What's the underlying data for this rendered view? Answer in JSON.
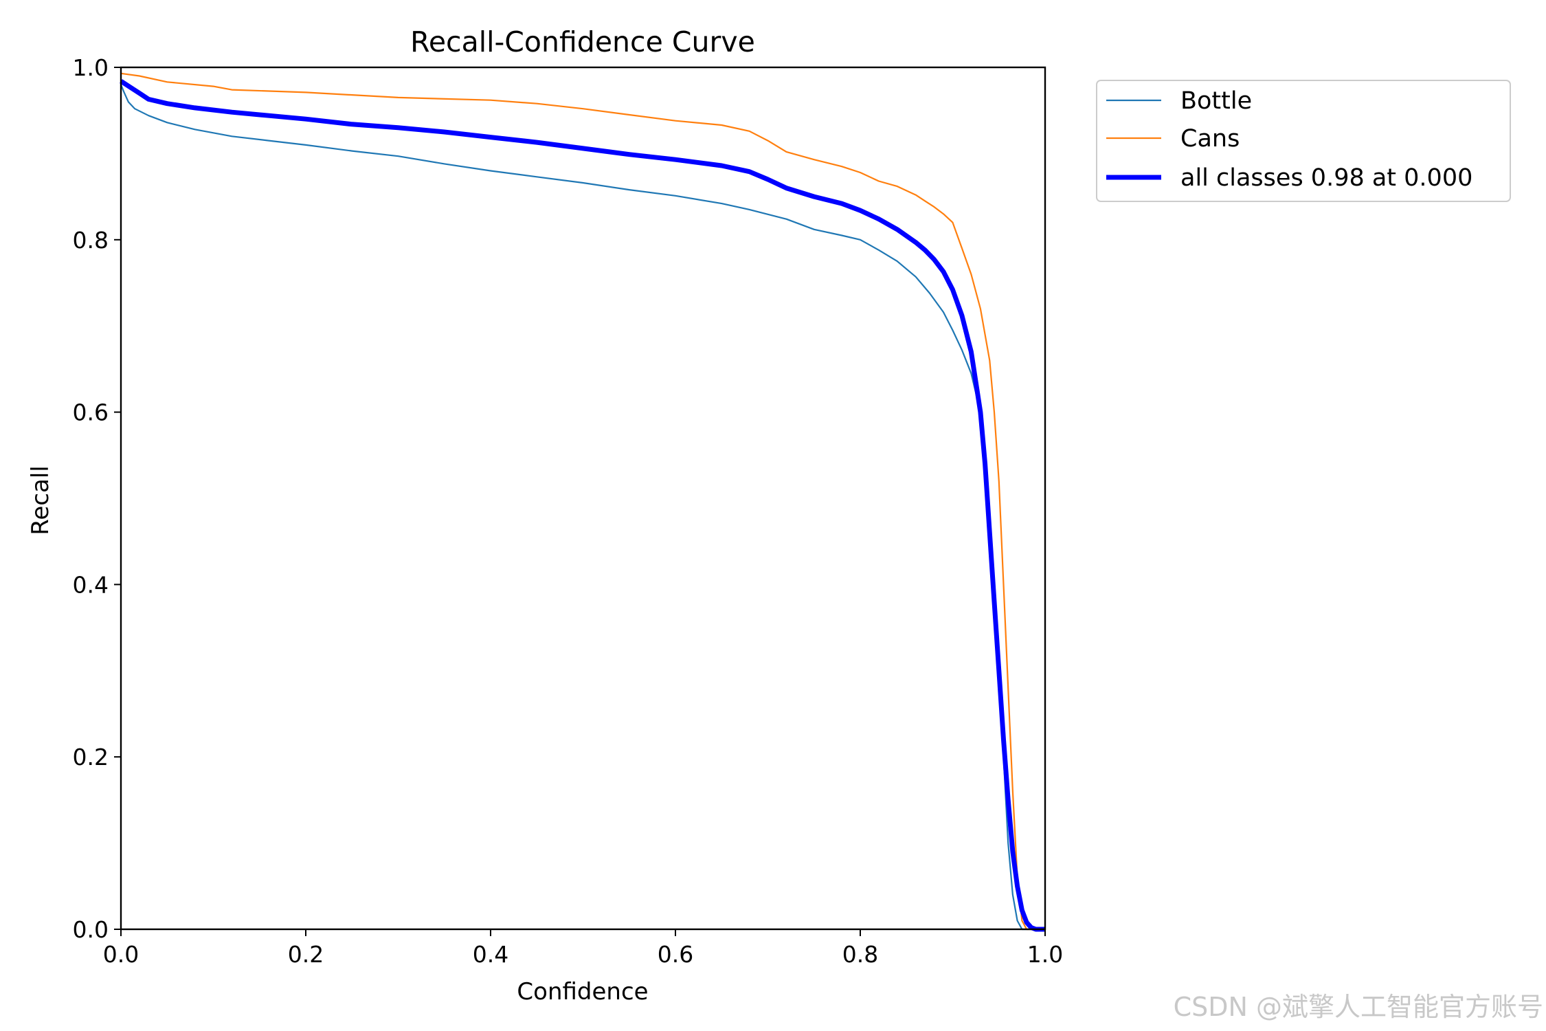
{
  "chart_data": {
    "type": "line",
    "title": "Recall-Confidence Curve",
    "xlabel": "Confidence",
    "ylabel": "Recall",
    "xlim": [
      0,
      1
    ],
    "ylim": [
      0,
      1
    ],
    "xticks": [
      "0.0",
      "0.2",
      "0.4",
      "0.6",
      "0.8",
      "1.0"
    ],
    "yticks": [
      "0.0",
      "0.2",
      "0.4",
      "0.6",
      "0.8",
      "1.0"
    ],
    "grid": false,
    "legend_position": "outside-top-right",
    "series": [
      {
        "name": "Bottle",
        "color": "#1f77b4",
        "width": "thin",
        "points": [
          [
            0.0,
            0.98
          ],
          [
            0.003,
            0.972
          ],
          [
            0.008,
            0.96
          ],
          [
            0.015,
            0.952
          ],
          [
            0.03,
            0.944
          ],
          [
            0.05,
            0.936
          ],
          [
            0.08,
            0.928
          ],
          [
            0.12,
            0.92
          ],
          [
            0.16,
            0.915
          ],
          [
            0.2,
            0.91
          ],
          [
            0.25,
            0.903
          ],
          [
            0.3,
            0.897
          ],
          [
            0.35,
            0.888
          ],
          [
            0.4,
            0.88
          ],
          [
            0.45,
            0.873
          ],
          [
            0.5,
            0.866
          ],
          [
            0.55,
            0.858
          ],
          [
            0.6,
            0.851
          ],
          [
            0.65,
            0.842
          ],
          [
            0.68,
            0.835
          ],
          [
            0.72,
            0.824
          ],
          [
            0.75,
            0.812
          ],
          [
            0.78,
            0.805
          ],
          [
            0.8,
            0.8
          ],
          [
            0.82,
            0.788
          ],
          [
            0.84,
            0.775
          ],
          [
            0.86,
            0.757
          ],
          [
            0.875,
            0.738
          ],
          [
            0.89,
            0.716
          ],
          [
            0.9,
            0.695
          ],
          [
            0.91,
            0.672
          ],
          [
            0.92,
            0.645
          ],
          [
            0.93,
            0.6
          ],
          [
            0.935,
            0.55
          ],
          [
            0.94,
            0.48
          ],
          [
            0.945,
            0.4
          ],
          [
            0.95,
            0.3
          ],
          [
            0.955,
            0.2
          ],
          [
            0.96,
            0.1
          ],
          [
            0.965,
            0.04
          ],
          [
            0.97,
            0.01
          ],
          [
            0.975,
            0.0
          ],
          [
            1.0,
            0.0
          ]
        ]
      },
      {
        "name": "Cans",
        "color": "#ff7f0e",
        "width": "thin",
        "points": [
          [
            0.0,
            0.993
          ],
          [
            0.02,
            0.99
          ],
          [
            0.05,
            0.983
          ],
          [
            0.1,
            0.978
          ],
          [
            0.12,
            0.974
          ],
          [
            0.2,
            0.971
          ],
          [
            0.3,
            0.965
          ],
          [
            0.4,
            0.962
          ],
          [
            0.45,
            0.958
          ],
          [
            0.5,
            0.952
          ],
          [
            0.55,
            0.945
          ],
          [
            0.6,
            0.938
          ],
          [
            0.65,
            0.933
          ],
          [
            0.68,
            0.926
          ],
          [
            0.7,
            0.915
          ],
          [
            0.72,
            0.902
          ],
          [
            0.75,
            0.893
          ],
          [
            0.78,
            0.885
          ],
          [
            0.8,
            0.878
          ],
          [
            0.82,
            0.868
          ],
          [
            0.84,
            0.862
          ],
          [
            0.86,
            0.852
          ],
          [
            0.87,
            0.845
          ],
          [
            0.88,
            0.838
          ],
          [
            0.89,
            0.83
          ],
          [
            0.9,
            0.82
          ],
          [
            0.91,
            0.79
          ],
          [
            0.92,
            0.76
          ],
          [
            0.93,
            0.72
          ],
          [
            0.94,
            0.66
          ],
          [
            0.945,
            0.6
          ],
          [
            0.95,
            0.52
          ],
          [
            0.955,
            0.4
          ],
          [
            0.96,
            0.28
          ],
          [
            0.965,
            0.16
          ],
          [
            0.97,
            0.06
          ],
          [
            0.975,
            0.01
          ],
          [
            0.98,
            0.0
          ],
          [
            1.0,
            0.0
          ]
        ]
      },
      {
        "name": "all classes 0.98 at 0.000",
        "color": "#0000ff",
        "width": "thick",
        "points": [
          [
            0.0,
            0.984
          ],
          [
            0.01,
            0.977
          ],
          [
            0.02,
            0.97
          ],
          [
            0.03,
            0.963
          ],
          [
            0.05,
            0.958
          ],
          [
            0.08,
            0.953
          ],
          [
            0.12,
            0.948
          ],
          [
            0.16,
            0.944
          ],
          [
            0.2,
            0.94
          ],
          [
            0.25,
            0.934
          ],
          [
            0.3,
            0.93
          ],
          [
            0.35,
            0.925
          ],
          [
            0.4,
            0.919
          ],
          [
            0.45,
            0.913
          ],
          [
            0.5,
            0.906
          ],
          [
            0.55,
            0.899
          ],
          [
            0.6,
            0.893
          ],
          [
            0.65,
            0.886
          ],
          [
            0.68,
            0.879
          ],
          [
            0.7,
            0.87
          ],
          [
            0.72,
            0.86
          ],
          [
            0.75,
            0.85
          ],
          [
            0.78,
            0.842
          ],
          [
            0.8,
            0.834
          ],
          [
            0.82,
            0.824
          ],
          [
            0.84,
            0.812
          ],
          [
            0.86,
            0.797
          ],
          [
            0.87,
            0.788
          ],
          [
            0.88,
            0.777
          ],
          [
            0.89,
            0.763
          ],
          [
            0.9,
            0.742
          ],
          [
            0.91,
            0.712
          ],
          [
            0.92,
            0.67
          ],
          [
            0.93,
            0.6
          ],
          [
            0.935,
            0.54
          ],
          [
            0.94,
            0.46
          ],
          [
            0.945,
            0.38
          ],
          [
            0.95,
            0.3
          ],
          [
            0.955,
            0.22
          ],
          [
            0.96,
            0.15
          ],
          [
            0.965,
            0.09
          ],
          [
            0.97,
            0.05
          ],
          [
            0.975,
            0.022
          ],
          [
            0.98,
            0.008
          ],
          [
            0.985,
            0.002
          ],
          [
            0.99,
            0.0
          ],
          [
            1.0,
            0.0
          ]
        ]
      }
    ]
  },
  "watermark": "CSDN @斌擎人工智能官方账号"
}
